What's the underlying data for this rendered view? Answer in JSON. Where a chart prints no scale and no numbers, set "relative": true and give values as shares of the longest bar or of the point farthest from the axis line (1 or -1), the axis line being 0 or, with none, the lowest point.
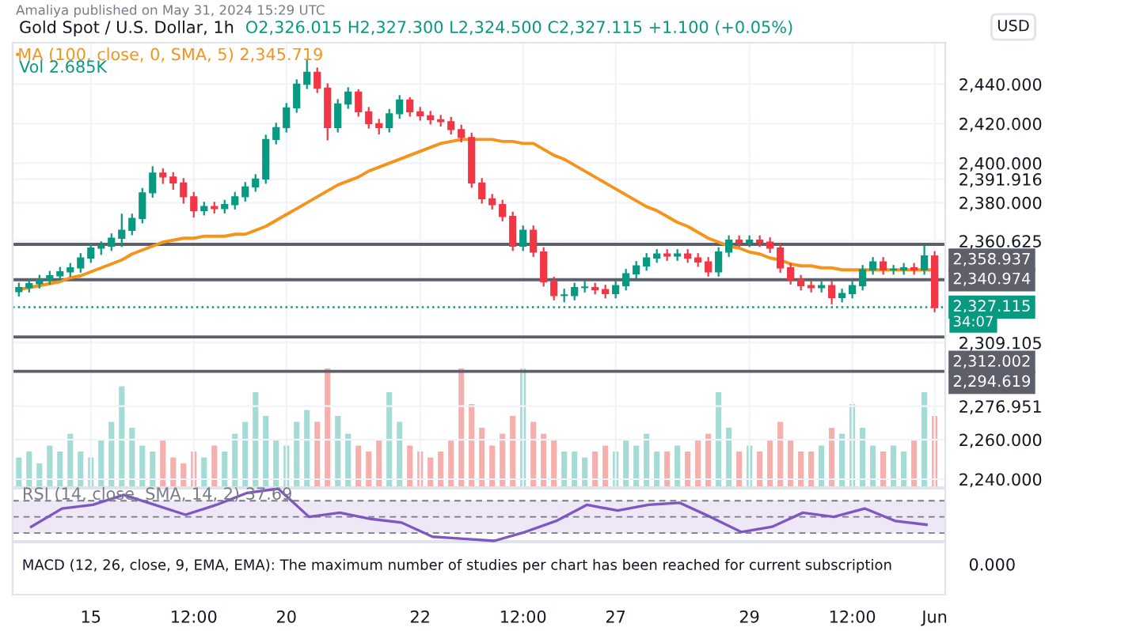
{
  "chart_data": [
    {
      "type": "candlestick",
      "title": "Gold Spot / U.S. Dollar, 1h",
      "subtitle": "O2,326.015 H2,327.300 L2,324.500 C2,327.115 +1.100 (+0.05%)",
      "annotations": [
        "Amaliya published on May 31, 2024 15:29 UTC",
        "USD",
        "34:07"
      ],
      "categories": [
        null,
        null,
        null,
        null,
        null,
        null,
        null,
        "15",
        null,
        null,
        null,
        null,
        null,
        null,
        null,
        null,
        null,
        "12:00",
        null,
        null,
        null,
        null,
        null,
        null,
        null,
        null,
        "20",
        null,
        null,
        null,
        null,
        null,
        null,
        null,
        null,
        null,
        null,
        null,
        null,
        "22",
        null,
        null,
        null,
        null,
        null,
        null,
        null,
        null,
        null,
        "12:00",
        null,
        null,
        null,
        null,
        null,
        null,
        null,
        null,
        "27",
        null,
        null,
        null,
        null,
        null,
        null,
        null,
        null,
        null,
        null,
        null,
        null,
        "29",
        null,
        null,
        null,
        null,
        null,
        null,
        null,
        null,
        null,
        "12:00",
        null,
        null,
        null,
        null,
        null,
        null,
        null,
        "Jun"
      ],
      "ohlc": [
        [
          2335,
          2339,
          2333,
          2337
        ],
        [
          2337,
          2341,
          2335,
          2339
        ],
        [
          2339,
          2343,
          2337,
          2341
        ],
        [
          2341,
          2345,
          2339,
          2343
        ],
        [
          2343,
          2347,
          2341,
          2345
        ],
        [
          2345,
          2349,
          2343,
          2347
        ],
        [
          2347,
          2354,
          2345,
          2352
        ],
        [
          2352,
          2359,
          2350,
          2357
        ],
        [
          2357,
          2360,
          2354,
          2358
        ],
        [
          2358,
          2364,
          2356,
          2362
        ],
        [
          2362,
          2374,
          2358,
          2366
        ],
        [
          2366,
          2374,
          2364,
          2372
        ],
        [
          2372,
          2387,
          2370,
          2385
        ],
        [
          2385,
          2398,
          2383,
          2395
        ],
        [
          2395,
          2397,
          2390,
          2393
        ],
        [
          2393,
          2395,
          2387,
          2390
        ],
        [
          2390,
          2392,
          2380,
          2383
        ],
        [
          2383,
          2385,
          2373,
          2376
        ],
        [
          2376,
          2380,
          2374,
          2378
        ],
        [
          2378,
          2380,
          2375,
          2377
        ],
        [
          2377,
          2381,
          2375,
          2379
        ],
        [
          2379,
          2385,
          2377,
          2383
        ],
        [
          2383,
          2390,
          2381,
          2388
        ],
        [
          2388,
          2394,
          2386,
          2392
        ],
        [
          2392,
          2414,
          2390,
          2412
        ],
        [
          2412,
          2420,
          2410,
          2418
        ],
        [
          2418,
          2430,
          2416,
          2428
        ],
        [
          2428,
          2442,
          2426,
          2440
        ],
        [
          2440,
          2452,
          2438,
          2446
        ],
        [
          2446,
          2448,
          2436,
          2438
        ],
        [
          2438,
          2440,
          2412,
          2418
        ],
        [
          2418,
          2432,
          2416,
          2430
        ],
        [
          2430,
          2438,
          2428,
          2436
        ],
        [
          2436,
          2437,
          2424,
          2426
        ],
        [
          2426,
          2428,
          2418,
          2420
        ],
        [
          2420,
          2422,
          2415,
          2418
        ],
        [
          2418,
          2427,
          2416,
          2425
        ],
        [
          2425,
          2434,
          2423,
          2432
        ],
        [
          2432,
          2433,
          2424,
          2426
        ],
        [
          2426,
          2428,
          2422,
          2424
        ],
        [
          2424,
          2426,
          2420,
          2422
        ],
        [
          2422,
          2424,
          2419,
          2421
        ],
        [
          2421,
          2423,
          2415,
          2417
        ],
        [
          2417,
          2419,
          2411,
          2413
        ],
        [
          2413,
          2415,
          2388,
          2390
        ],
        [
          2390,
          2392,
          2380,
          2382
        ],
        [
          2382,
          2384,
          2377,
          2379
        ],
        [
          2379,
          2381,
          2371,
          2373
        ],
        [
          2373,
          2375,
          2356,
          2358
        ],
        [
          2358,
          2368,
          2356,
          2366
        ],
        [
          2366,
          2368,
          2353,
          2355
        ],
        [
          2355,
          2357,
          2338,
          2340
        ],
        [
          2340,
          2342,
          2331,
          2333
        ],
        [
          2333,
          2336,
          2330,
          2333
        ],
        [
          2333,
          2339,
          2331,
          2337
        ],
        [
          2337,
          2340,
          2335,
          2337
        ],
        [
          2337,
          2339,
          2334,
          2336
        ],
        [
          2336,
          2338,
          2332,
          2334
        ],
        [
          2334,
          2340,
          2332,
          2338
        ],
        [
          2338,
          2346,
          2336,
          2344
        ],
        [
          2344,
          2350,
          2342,
          2348
        ],
        [
          2348,
          2354,
          2346,
          2352
        ],
        [
          2352,
          2356,
          2350,
          2354
        ],
        [
          2354,
          2356,
          2351,
          2353
        ],
        [
          2353,
          2356,
          2351,
          2354
        ],
        [
          2354,
          2356,
          2350,
          2352
        ],
        [
          2352,
          2354,
          2348,
          2350
        ],
        [
          2350,
          2352,
          2343,
          2345
        ],
        [
          2345,
          2357,
          2343,
          2355
        ],
        [
          2355,
          2363,
          2353,
          2361
        ],
        [
          2361,
          2363,
          2358,
          2360
        ],
        [
          2360,
          2363,
          2358,
          2361
        ],
        [
          2361,
          2363,
          2358,
          2360
        ],
        [
          2360,
          2362,
          2355,
          2357
        ],
        [
          2357,
          2359,
          2345,
          2347
        ],
        [
          2347,
          2349,
          2339,
          2341
        ],
        [
          2341,
          2343,
          2336,
          2338
        ],
        [
          2338,
          2340,
          2335,
          2337
        ],
        [
          2337,
          2340,
          2335,
          2338
        ],
        [
          2338,
          2340,
          2329,
          2332
        ],
        [
          2332,
          2336,
          2330,
          2334
        ],
        [
          2334,
          2340,
          2332,
          2338
        ],
        [
          2338,
          2348,
          2336,
          2346
        ],
        [
          2346,
          2352,
          2344,
          2350
        ],
        [
          2350,
          2352,
          2344,
          2346
        ],
        [
          2346,
          2348,
          2344,
          2346
        ],
        [
          2346,
          2349,
          2344,
          2347
        ],
        [
          2347,
          2349,
          2344,
          2346
        ],
        [
          2346,
          2358,
          2344,
          2353
        ],
        [
          2353,
          2355,
          2325,
          2327
        ]
      ],
      "colors": [
        "#089981",
        "#089981",
        "#089981",
        "#089981",
        "#089981",
        "#089981",
        "#089981",
        "#089981",
        "#089981",
        "#089981",
        "#089981",
        "#089981",
        "#089981",
        "#089981",
        "#f23645",
        "#f23645",
        "#f23645",
        "#f23645",
        "#089981",
        "#f23645",
        "#089981",
        "#089981",
        "#089981",
        "#089981",
        "#089981",
        "#089981",
        "#089981",
        "#089981",
        "#089981",
        "#f23645",
        "#f23645",
        "#089981",
        "#089981",
        "#f23645",
        "#f23645",
        "#f23645",
        "#089981",
        "#089981",
        "#f23645",
        "#f23645",
        "#f23645",
        "#f23645",
        "#f23645",
        "#f23645",
        "#f23645",
        "#f23645",
        "#f23645",
        "#f23645",
        "#f23645",
        "#089981",
        "#f23645",
        "#f23645",
        "#f23645",
        "#089981",
        "#089981",
        "#089981",
        "#f23645",
        "#f23645",
        "#089981",
        "#089981",
        "#089981",
        "#089981",
        "#089981",
        "#f23645",
        "#089981",
        "#f23645",
        "#f23645",
        "#f23645",
        "#089981",
        "#089981",
        "#f23645",
        "#089981",
        "#f23645",
        "#f23645",
        "#f23645",
        "#f23645",
        "#f23645",
        "#f23645",
        "#089981",
        "#f23645",
        "#089981",
        "#089981",
        "#089981",
        "#089981",
        "#f23645",
        "#089981",
        "#089981",
        "#f23645",
        "#089981",
        "#f23645"
      ],
      "series": [
        {
          "name": "MA (100, close, 0, SMA, 5) 2,345.719",
          "type": "line",
          "color": "#f7931a",
          "values": [
            2336,
            2337,
            2338,
            2339,
            2340,
            2342,
            2343,
            2345,
            2347,
            2349,
            2351,
            2354,
            2356,
            2358,
            2360,
            2361,
            2362,
            2362,
            2363,
            2363,
            2363,
            2364,
            2364,
            2366,
            2368,
            2371,
            2374,
            2377,
            2380,
            2383,
            2386,
            2389,
            2391,
            2393,
            2396,
            2398,
            2400,
            2402,
            2404,
            2406,
            2408,
            2410,
            2411,
            2412,
            2412,
            2412,
            2412,
            2411,
            2411,
            2410,
            2410,
            2407,
            2404,
            2402,
            2399,
            2396,
            2393,
            2390,
            2387,
            2384,
            2381,
            2378,
            2376,
            2373,
            2370,
            2368,
            2365,
            2362,
            2360,
            2358,
            2357,
            2355,
            2354,
            2352,
            2351,
            2349,
            2348,
            2348,
            2347,
            2347,
            2346,
            2346,
            2346,
            2346,
            2346,
            2346,
            2346,
            2346,
            2346,
            2346
          ]
        }
      ],
      "ylim": [
        2236,
        2461
      ],
      "yticks": [
        {
          "value": 2240,
          "label": "2,240.000"
        },
        {
          "value": 2260,
          "label": "2,260.000"
        },
        {
          "value": 2276.951,
          "label": "2,276.951"
        },
        {
          "value": 2309.105,
          "label": "2,309.105"
        },
        {
          "value": 2360.625,
          "label": "2,360.625"
        },
        {
          "value": 2380,
          "label": "2,380.000"
        },
        {
          "value": 2391.916,
          "label": "2,391.916"
        },
        {
          "value": 2400,
          "label": "2,400.000"
        },
        {
          "value": 2420,
          "label": "2,420.000"
        },
        {
          "value": 2440,
          "label": "2,440.000"
        }
      ],
      "ref_lines": [
        {
          "axis": "y",
          "value": 2327.115,
          "label": "2,327.115",
          "color": "#089981",
          "line_style": "dotted"
        },
        {
          "axis": "y",
          "value": 2358.937,
          "label": "2,358.937",
          "color": "#5d606b",
          "line_style": "solid"
        },
        {
          "axis": "y",
          "value": 2340.974,
          "label": "2,340.974",
          "color": "#5d606b",
          "line_style": "solid"
        },
        {
          "axis": "y",
          "value": 2312.002,
          "label": "2,312.002",
          "color": "#5d606b",
          "line_style": "solid"
        },
        {
          "axis": "y",
          "value": 2294.619,
          "label": "2,294.619",
          "color": "#5d606b",
          "line_style": "solid"
        }
      ],
      "grid": true,
      "legend": "top left"
    },
    {
      "type": "bar",
      "title": "Vol 2.685K",
      "relative": true,
      "categories": [
        null,
        null,
        null,
        null,
        null,
        null,
        null,
        null,
        null,
        null,
        null,
        null,
        null,
        null,
        null,
        null,
        null,
        null,
        null,
        null,
        null,
        null,
        null,
        null,
        null,
        null,
        null,
        null,
        null,
        null,
        null,
        null,
        null,
        null,
        null,
        null,
        null,
        null,
        null,
        null,
        null,
        null,
        null,
        null,
        null,
        null,
        null,
        null,
        null,
        null,
        null,
        null,
        null,
        null,
        null,
        null,
        null,
        null,
        null,
        null,
        null,
        null,
        null,
        null,
        null,
        null,
        null,
        null,
        null,
        null,
        null,
        null,
        null,
        null,
        null,
        null,
        null,
        null,
        null,
        null,
        null,
        null,
        null,
        null,
        null,
        null,
        null,
        null,
        null,
        null
      ],
      "values": [
        0.25,
        0.3,
        0.2,
        0.35,
        0.3,
        0.45,
        0.3,
        0.25,
        0.4,
        0.55,
        0.85,
        0.5,
        0.35,
        0.3,
        0.4,
        0.25,
        0.2,
        0.3,
        0.25,
        0.35,
        0.3,
        0.45,
        0.55,
        0.8,
        0.6,
        0.4,
        0.35,
        0.55,
        0.65,
        0.55,
        1.0,
        0.6,
        0.45,
        0.35,
        0.3,
        0.4,
        0.8,
        0.55,
        0.35,
        0.3,
        0.25,
        0.3,
        0.4,
        1.0,
        0.7,
        0.5,
        0.35,
        0.45,
        0.6,
        1.0,
        0.55,
        0.45,
        0.4,
        0.3,
        0.3,
        0.25,
        0.3,
        0.35,
        0.3,
        0.4,
        0.35,
        0.45,
        0.3,
        0.3,
        0.35,
        0.3,
        0.4,
        0.45,
        0.8,
        0.5,
        0.3,
        0.35,
        0.3,
        0.4,
        0.55,
        0.4,
        0.3,
        0.3,
        0.35,
        0.5,
        0.45,
        0.7,
        0.5,
        0.35,
        0.3,
        0.35,
        0.3,
        0.4,
        0.8,
        0.6
      ],
      "colors": [
        "#a5dbd5",
        "#a5dbd5",
        "#a5dbd5",
        "#a5dbd5",
        "#a5dbd5",
        "#a5dbd5",
        "#a5dbd5",
        "#a5dbd5",
        "#a5dbd5",
        "#a5dbd5",
        "#a5dbd5",
        "#a5dbd5",
        "#a5dbd5",
        "#a5dbd5",
        "#f5b0ae",
        "#f5b0ae",
        "#f5b0ae",
        "#f5b0ae",
        "#a5dbd5",
        "#f5b0ae",
        "#a5dbd5",
        "#a5dbd5",
        "#a5dbd5",
        "#a5dbd5",
        "#a5dbd5",
        "#a5dbd5",
        "#a5dbd5",
        "#a5dbd5",
        "#a5dbd5",
        "#f5b0ae",
        "#f5b0ae",
        "#a5dbd5",
        "#a5dbd5",
        "#f5b0ae",
        "#f5b0ae",
        "#f5b0ae",
        "#a5dbd5",
        "#a5dbd5",
        "#f5b0ae",
        "#f5b0ae",
        "#f5b0ae",
        "#f5b0ae",
        "#f5b0ae",
        "#f5b0ae",
        "#f5b0ae",
        "#f5b0ae",
        "#f5b0ae",
        "#f5b0ae",
        "#f5b0ae",
        "#a5dbd5",
        "#f5b0ae",
        "#f5b0ae",
        "#f5b0ae",
        "#a5dbd5",
        "#a5dbd5",
        "#a5dbd5",
        "#f5b0ae",
        "#f5b0ae",
        "#a5dbd5",
        "#a5dbd5",
        "#a5dbd5",
        "#a5dbd5",
        "#a5dbd5",
        "#f5b0ae",
        "#a5dbd5",
        "#f5b0ae",
        "#f5b0ae",
        "#f5b0ae",
        "#a5dbd5",
        "#a5dbd5",
        "#f5b0ae",
        "#a5dbd5",
        "#f5b0ae",
        "#f5b0ae",
        "#f5b0ae",
        "#f5b0ae",
        "#f5b0ae",
        "#f5b0ae",
        "#a5dbd5",
        "#f5b0ae",
        "#a5dbd5",
        "#a5dbd5",
        "#a5dbd5",
        "#a5dbd5",
        "#f5b0ae",
        "#a5dbd5",
        "#a5dbd5",
        "#f5b0ae",
        "#a5dbd5",
        "#f5b0ae"
      ]
    },
    {
      "type": "line",
      "title": "RSI (14, close, SMA, 14, 2) 37.69",
      "relative": true,
      "categories": [
        null,
        null,
        null,
        null,
        null,
        null,
        null,
        null,
        null,
        null,
        null,
        null,
        null,
        null,
        null,
        null,
        null,
        null,
        null,
        null,
        null,
        null,
        null,
        null,
        null,
        null,
        null,
        null,
        null,
        null
      ],
      "series": [
        {
          "color": "#7e57c2",
          "values": [
            0.27,
            0.62,
            0.69,
            0.88,
            0.69,
            0.5,
            0.69,
            0.92,
            1.0,
            0.46,
            0.54,
            0.42,
            0.35,
            0.08,
            0.04,
            0.0,
            0.17,
            0.38,
            0.69,
            0.58,
            0.69,
            0.73,
            0.46,
            0.17,
            0.27,
            0.54,
            0.46,
            0.62,
            0.38,
            0.31
          ]
        }
      ],
      "bands": [
        {
          "axis": "y",
          "from": 0.15,
          "to": 0.77,
          "color": "#ede7f6"
        }
      ]
    },
    {
      "type": "other",
      "annotations": [
        "MACD (12, 26, close, 9, EMA, EMA): The maximum number of studies per chart has been reached for current subscription",
        "0.000"
      ]
    }
  ]
}
